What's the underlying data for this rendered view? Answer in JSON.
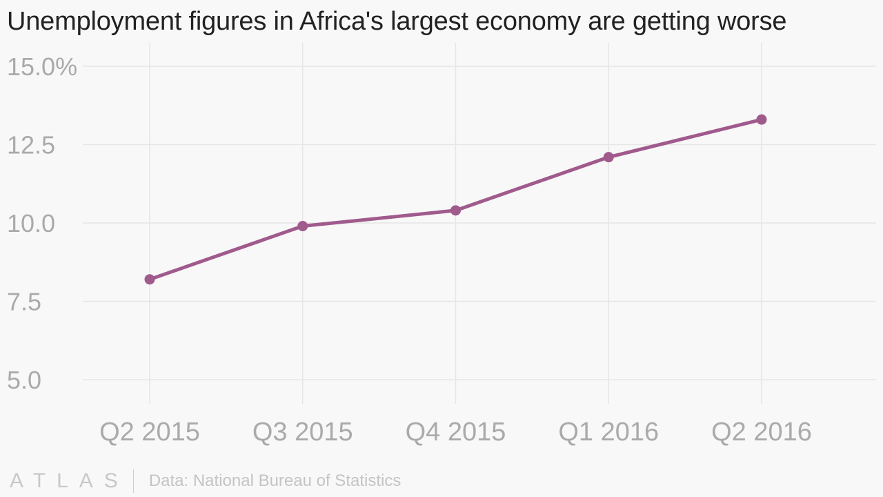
{
  "chart_data": {
    "type": "line",
    "title": "Unemployment figures in Africa's largest economy are getting worse",
    "xlabel": "",
    "ylabel": "",
    "categories": [
      "Q2 2015",
      "Q3 2015",
      "Q4 2015",
      "Q1 2016",
      "Q2 2016"
    ],
    "series": [
      {
        "values": [
          8.2,
          9.9,
          10.4,
          12.1,
          13.3
        ],
        "color": "#a05a8c"
      }
    ],
    "ylim": [
      5,
      15
    ],
    "y_ticks": [
      {
        "value": 15,
        "label": "15.0%"
      },
      {
        "value": 12.5,
        "label": "12.5"
      },
      {
        "value": 10,
        "label": "10.0"
      },
      {
        "value": 7.5,
        "label": "7.5"
      },
      {
        "value": 5,
        "label": "5.0"
      }
    ],
    "grid": true,
    "legend": "none"
  },
  "footer": {
    "logo_text": "ATLAS",
    "source": "Data: National Bureau of Statistics"
  }
}
